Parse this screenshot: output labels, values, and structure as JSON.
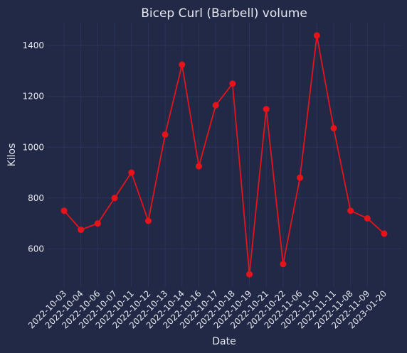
{
  "chart_data": {
    "type": "line",
    "title": "Bicep Curl (Barbell) volume",
    "xlabel": "Date",
    "ylabel": "Kilos",
    "x": [
      "2022-10-03",
      "2022-10-04",
      "2022-10-06",
      "2022-10-07",
      "2022-10-11",
      "2022-10-12",
      "2022-10-13",
      "2022-10-14",
      "2022-10-16",
      "2022-10-17",
      "2022-10-18",
      "2022-10-19",
      "2022-10-21",
      "2022-10-22",
      "2022-11-06",
      "2022-11-10",
      "2022-11-11",
      "2022-11-08",
      "2022-11-09",
      "2023-01-20"
    ],
    "series": [
      {
        "values": [
          750,
          675,
          700,
          800,
          900,
          710,
          1050,
          1325,
          925,
          1165,
          1250,
          500,
          1150,
          540,
          880,
          1440,
          1075,
          750,
          720,
          660
        ]
      }
    ],
    "ylim": [
      450,
      1490
    ],
    "yticks": [
      600,
      800,
      1000,
      1200,
      1400
    ],
    "grid": true,
    "colors": {
      "background": "#212946",
      "grid": "#2A3459",
      "line": "#E6131A",
      "text": "#E6E8EE"
    }
  }
}
